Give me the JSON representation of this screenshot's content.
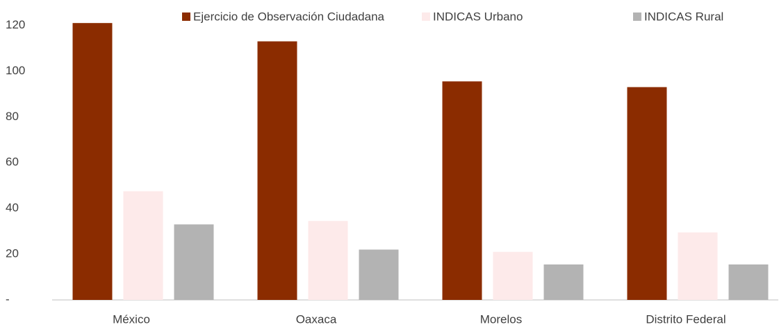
{
  "chart_data": {
    "type": "bar",
    "categories": [
      "México",
      "Oaxaca",
      "Morelos",
      "Distrito Federal"
    ],
    "series": [
      {
        "name": "Ejercicio de Observación Ciudadana",
        "color": "#8b2c00",
        "values": [
          121,
          113,
          95.5,
          93
        ]
      },
      {
        "name": "INDICAS Urbano",
        "color": "#fdeaea",
        "values": [
          47.5,
          34.5,
          21,
          29.5
        ]
      },
      {
        "name": "INDICAS Rural",
        "color": "#b3b3b3",
        "values": [
          33,
          22,
          15.5,
          15.5
        ]
      }
    ],
    "ylim": [
      0,
      125
    ],
    "yticks": [
      {
        "value": 0,
        "label": "-"
      },
      20,
      40,
      60,
      80,
      100,
      120
    ],
    "grid": false,
    "legend": "top"
  }
}
